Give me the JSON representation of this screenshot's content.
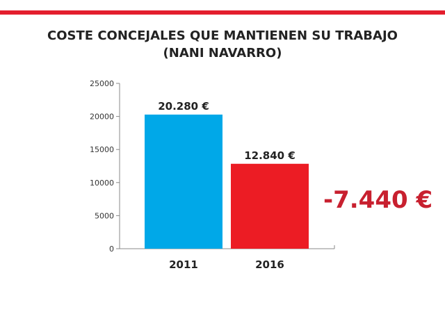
{
  "chart_data": {
    "type": "bar",
    "title": "COSTE CONCEJALES QUE MANTIENEN SU TRABAJO",
    "subtitle": "(NANI NAVARRO)",
    "categories": [
      "2011",
      "2016"
    ],
    "values": [
      20280,
      12840
    ],
    "data_labels": [
      "20.280 €",
      "12.840 €"
    ],
    "colors": [
      "#00a8e8",
      "#ec1c24"
    ],
    "ylim": [
      0,
      25000
    ],
    "yticks": [
      0,
      5000,
      10000,
      15000,
      20000,
      25000
    ],
    "xlabel": "",
    "ylabel": "",
    "grid": false,
    "annotation": "-7.440 €",
    "annotation_color": "#c8202f"
  },
  "accent_color": "#e31e2d"
}
